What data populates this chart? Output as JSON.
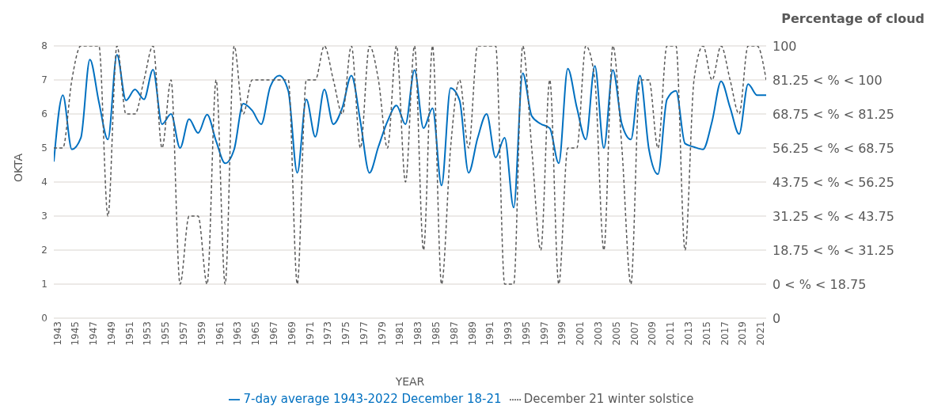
{
  "chart_data": {
    "type": "line",
    "xlabel": "YEAR",
    "ylabel": "OKTA",
    "y2label": "Percentage of cloud",
    "x": [
      1943,
      1944,
      1945,
      1946,
      1947,
      1948,
      1949,
      1950,
      1951,
      1952,
      1953,
      1954,
      1955,
      1956,
      1957,
      1958,
      1959,
      1960,
      1961,
      1962,
      1963,
      1964,
      1965,
      1966,
      1967,
      1968,
      1969,
      1970,
      1971,
      1972,
      1973,
      1974,
      1975,
      1976,
      1977,
      1978,
      1979,
      1980,
      1981,
      1982,
      1983,
      1984,
      1985,
      1986,
      1987,
      1988,
      1989,
      1990,
      1991,
      1992,
      1993,
      1994,
      1995,
      1996,
      1997,
      1998,
      1999,
      2000,
      2001,
      2002,
      2003,
      2004,
      2005,
      2006,
      2007,
      2008,
      2009,
      2010,
      2011,
      2012,
      2013,
      2014,
      2015,
      2016,
      2017,
      2018,
      2019,
      2020,
      2021,
      2022
    ],
    "series": [
      {
        "name": "7-day average 1943-2022 December 18-21",
        "color": "#0070c0",
        "line_style": "solid",
        "values": [
          4.6,
          6.55,
          4.96,
          5.3,
          7.6,
          6.35,
          5.25,
          7.74,
          6.4,
          6.72,
          6.43,
          7.3,
          5.7,
          6.0,
          5.0,
          5.85,
          5.44,
          5.98,
          5.2,
          4.55,
          4.96,
          6.3,
          6.1,
          5.7,
          6.8,
          7.13,
          6.68,
          4.27,
          6.43,
          5.33,
          6.72,
          5.7,
          6.19,
          7.13,
          5.78,
          4.27,
          5.04,
          5.78,
          6.25,
          5.7,
          7.29,
          5.58,
          6.17,
          3.9,
          6.76,
          6.4,
          4.27,
          5.29,
          6.0,
          4.72,
          5.3,
          3.25,
          7.2,
          5.94,
          5.71,
          5.58,
          4.55,
          7.33,
          6.19,
          5.25,
          7.41,
          5.0,
          7.29,
          5.7,
          5.25,
          7.13,
          4.96,
          4.23,
          6.43,
          6.68,
          5.13,
          5.03,
          4.96,
          5.78,
          6.96,
          6.19,
          5.41,
          6.88,
          6.55,
          6.55
        ]
      },
      {
        "name": "December 21 winter solstice",
        "color": "#595959",
        "line_style": "dashed",
        "values": [
          5,
          5,
          7,
          8,
          8,
          8,
          3,
          8,
          6,
          6,
          7,
          8,
          5,
          7,
          1,
          3,
          3,
          1,
          7,
          1,
          8,
          6,
          7,
          7,
          7,
          7,
          7,
          1,
          7,
          7,
          8,
          7,
          6,
          8,
          5,
          8,
          7,
          5,
          8,
          4,
          8,
          2,
          8,
          1,
          5,
          7,
          5,
          8,
          8,
          8,
          1,
          1,
          8,
          5,
          2,
          7,
          1,
          5,
          5,
          8,
          7,
          2,
          8,
          5,
          1,
          7,
          7,
          5,
          8,
          8,
          2,
          7,
          8,
          7,
          8,
          7,
          6,
          8,
          8,
          7
        ]
      }
    ],
    "xlim": [
      1943,
      2022
    ],
    "xticks": [
      1943,
      1945,
      1947,
      1949,
      1951,
      1953,
      1955,
      1957,
      1959,
      1961,
      1963,
      1965,
      1967,
      1969,
      1971,
      1973,
      1975,
      1977,
      1979,
      1981,
      1983,
      1985,
      1987,
      1989,
      1991,
      1993,
      1995,
      1997,
      1999,
      2001,
      2003,
      2005,
      2007,
      2009,
      2011,
      2013,
      2015,
      2017,
      2019,
      2021
    ],
    "ylim": [
      0,
      8
    ],
    "yticks": [
      0,
      1,
      2,
      3,
      4,
      5,
      6,
      7,
      8
    ],
    "y2lim": [
      0,
      100
    ],
    "y2ticks": [
      0,
      {
        "value": 12.5,
        "label": "0 < % < 18.75"
      },
      {
        "value": 25,
        "label": "18.75 < % < 31.25"
      },
      {
        "value": 37.5,
        "label": "31.25 < % < 43.75"
      },
      {
        "value": 50,
        "label": "43.75 < % < 56.25"
      },
      {
        "value": 62.5,
        "label": "56.25 < % < 68.75"
      },
      {
        "value": 75,
        "label": "68.75 < % < 81.25"
      },
      {
        "value": 87.5,
        "label": "81.25 < % < 100"
      },
      100
    ],
    "grid": "y",
    "legend": "bottom",
    "marker": "none"
  }
}
